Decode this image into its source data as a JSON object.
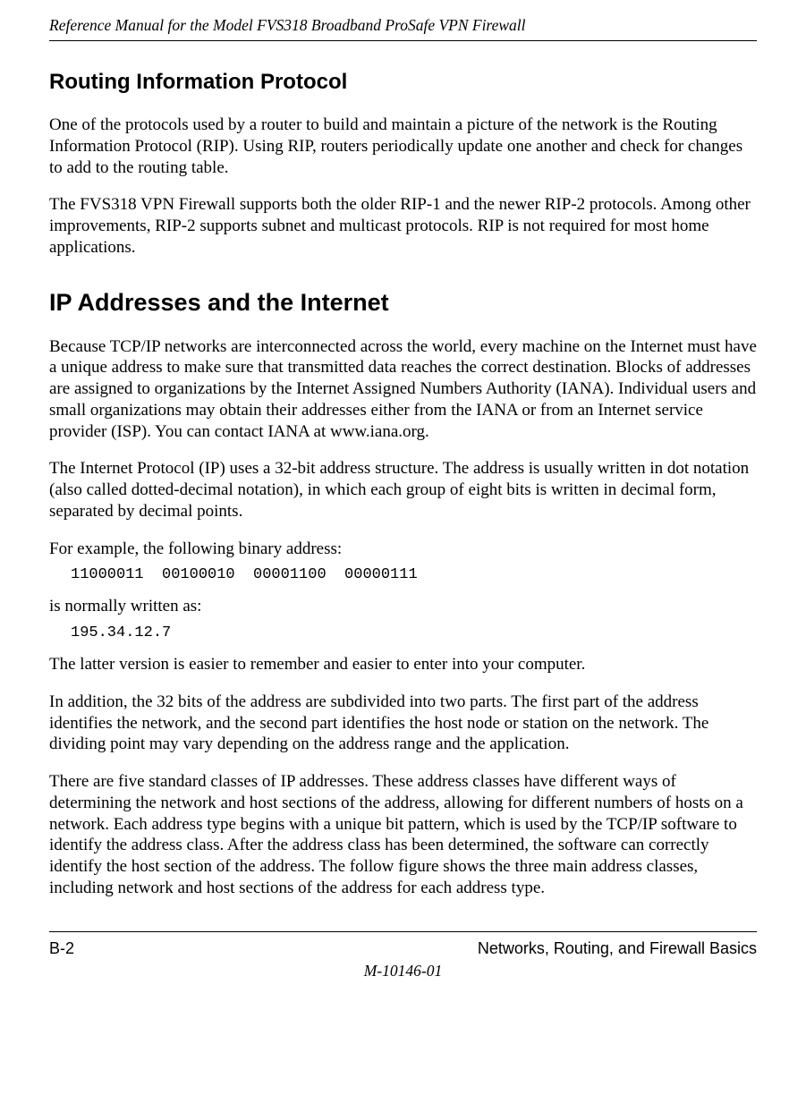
{
  "header": {
    "running_title": "Reference Manual for the Model FVS318 Broadband  ProSafe VPN Firewall"
  },
  "headings": {
    "rip": "Routing Information Protocol",
    "ip": "IP Addresses and the Internet"
  },
  "paragraphs": {
    "rip_p1": "One of the protocols used by a router to build and maintain a picture of the network is the Routing Information Protocol (RIP). Using RIP, routers periodically update one another and check for changes to add to the routing table.",
    "rip_p2": "The FVS318 VPN Firewall supports both the older RIP-1 and the newer RIP-2 protocols. Among other improvements, RIP-2 supports subnet and multicast protocols. RIP is not required for most home applications.",
    "ip_p1": "Because TCP/IP networks are interconnected across the world, every machine on the Internet must have a unique address to make sure that transmitted data reaches the correct destination. Blocks of addresses are assigned to organizations by the Internet Assigned Numbers Authority (IANA). Individual users and small organizations may obtain their addresses either from the IANA or from an Internet service provider (ISP). You can contact IANA at www.iana.org.",
    "ip_p2": "The Internet Protocol (IP) uses a 32-bit address structure. The address is usually written in dot notation (also called dotted-decimal notation), in which each group of eight bits is written in decimal form, separated by decimal points.",
    "ip_p3": "For example, the following binary address:",
    "ip_p4": "is normally written as:",
    "ip_p5": "The latter version is easier to remember and easier to enter into your computer.",
    "ip_p6": "In addition, the 32 bits of the address are subdivided into two parts. The first part of the address identifies the network, and the second part identifies the host node or station on the network. The dividing point may vary depending on the address range and the application.",
    "ip_p7": "There are five standard classes of IP addresses. These address classes have different ways of determining the network and host sections of the address, allowing for different numbers of hosts on a network. Each address type begins with a unique bit pattern, which is used by the TCP/IP software to identify the address class. After the address class has been determined, the software can correctly identify the host section of the address. The follow figure shows the three main address classes, including network and host sections of the address for each address type."
  },
  "code": {
    "binary": "11000011  00100010  00001100  00000111",
    "decimal": "195.34.12.7"
  },
  "footer": {
    "page_num": "B-2",
    "section": "Networks, Routing, and Firewall Basics",
    "doc_id": "M-10146-01"
  },
  "style": {
    "heading_font": "Arial, Helvetica, sans-serif",
    "body_font": "Times New Roman, serif",
    "code_font": "Courier New, monospace",
    "text_color": "#000000",
    "bg_color": "#ffffff",
    "h1_fontsize": 27,
    "h2_fontsize": 24,
    "body_fontsize": 19,
    "code_fontsize": 17,
    "header_fontsize": 17.5,
    "footer_fontsize": 18,
    "rule_color": "#000000"
  }
}
